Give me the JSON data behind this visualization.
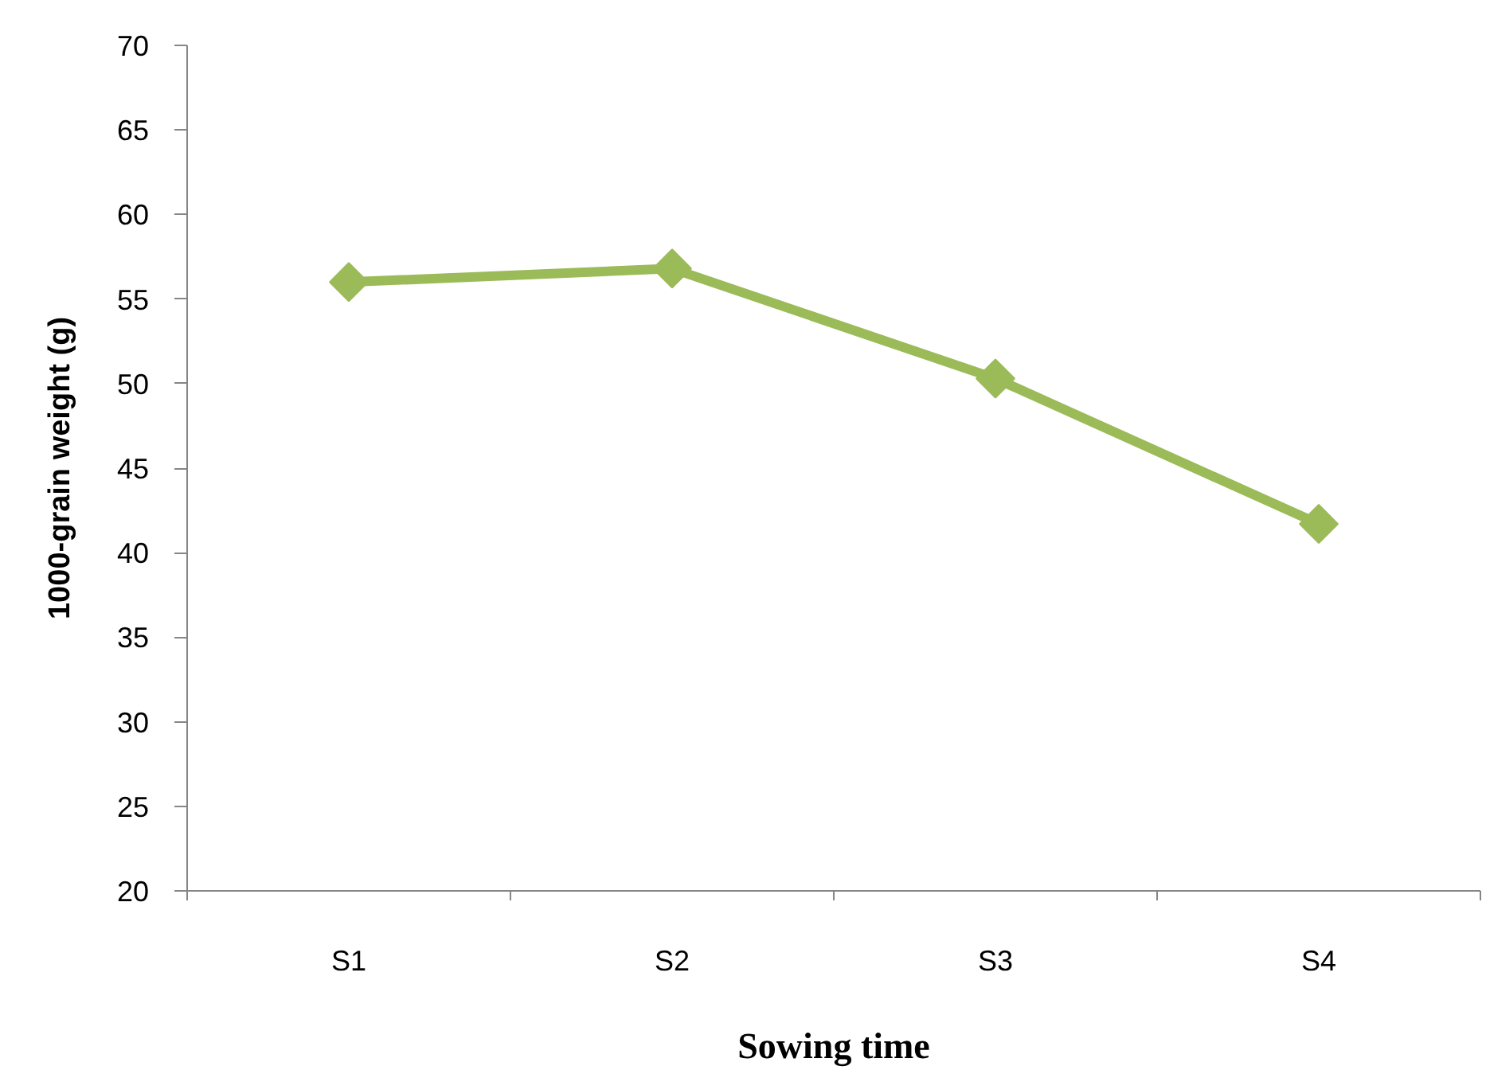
{
  "chart_data": {
    "type": "line",
    "xlabel": "Sowing time",
    "ylabel": "1000-grain weight (g)",
    "categories": [
      "S1",
      "S2",
      "S3",
      "S4"
    ],
    "series": [
      {
        "color": "#9bbb59",
        "values": [
          56.0,
          56.8,
          50.3,
          41.7
        ]
      }
    ],
    "ylim": [
      20,
      70
    ],
    "yticks": [
      20,
      25,
      30,
      35,
      40,
      45,
      50,
      55,
      60,
      65,
      70
    ],
    "grid": false,
    "marker": "diamond",
    "line_style": "solid"
  }
}
